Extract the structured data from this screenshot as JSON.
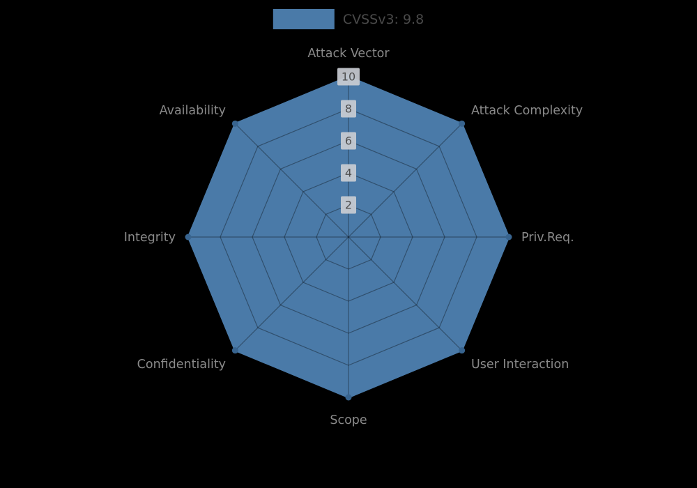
{
  "chart_data": {
    "type": "radar",
    "title": "CVSSv3: 9.8",
    "categories": [
      "Attack Vector",
      "Attack Complexity",
      "Priv.Req.",
      "User Interaction",
      "Scope",
      "Confidentiality",
      "Integrity",
      "Availability"
    ],
    "series": [
      {
        "name": "CVSSv3: 9.8",
        "values": [
          10,
          10,
          10,
          10,
          10,
          10,
          10,
          10
        ]
      }
    ],
    "ticks": [
      2,
      4,
      6,
      8,
      10
    ],
    "r_max": 10,
    "grid": true,
    "legend_position": "top-center",
    "colors": {
      "fill": "#4a7aa8",
      "edge": "#4a7aa8",
      "marker": "#38648f",
      "grid_line": "rgba(0,0,0,0.35)",
      "axis_label": "#8a8a8a",
      "tick_text": "#4f4f4f",
      "tick_box": "#c9ccd2",
      "legend_text": "#4a4a4a",
      "background": "#000000"
    }
  }
}
